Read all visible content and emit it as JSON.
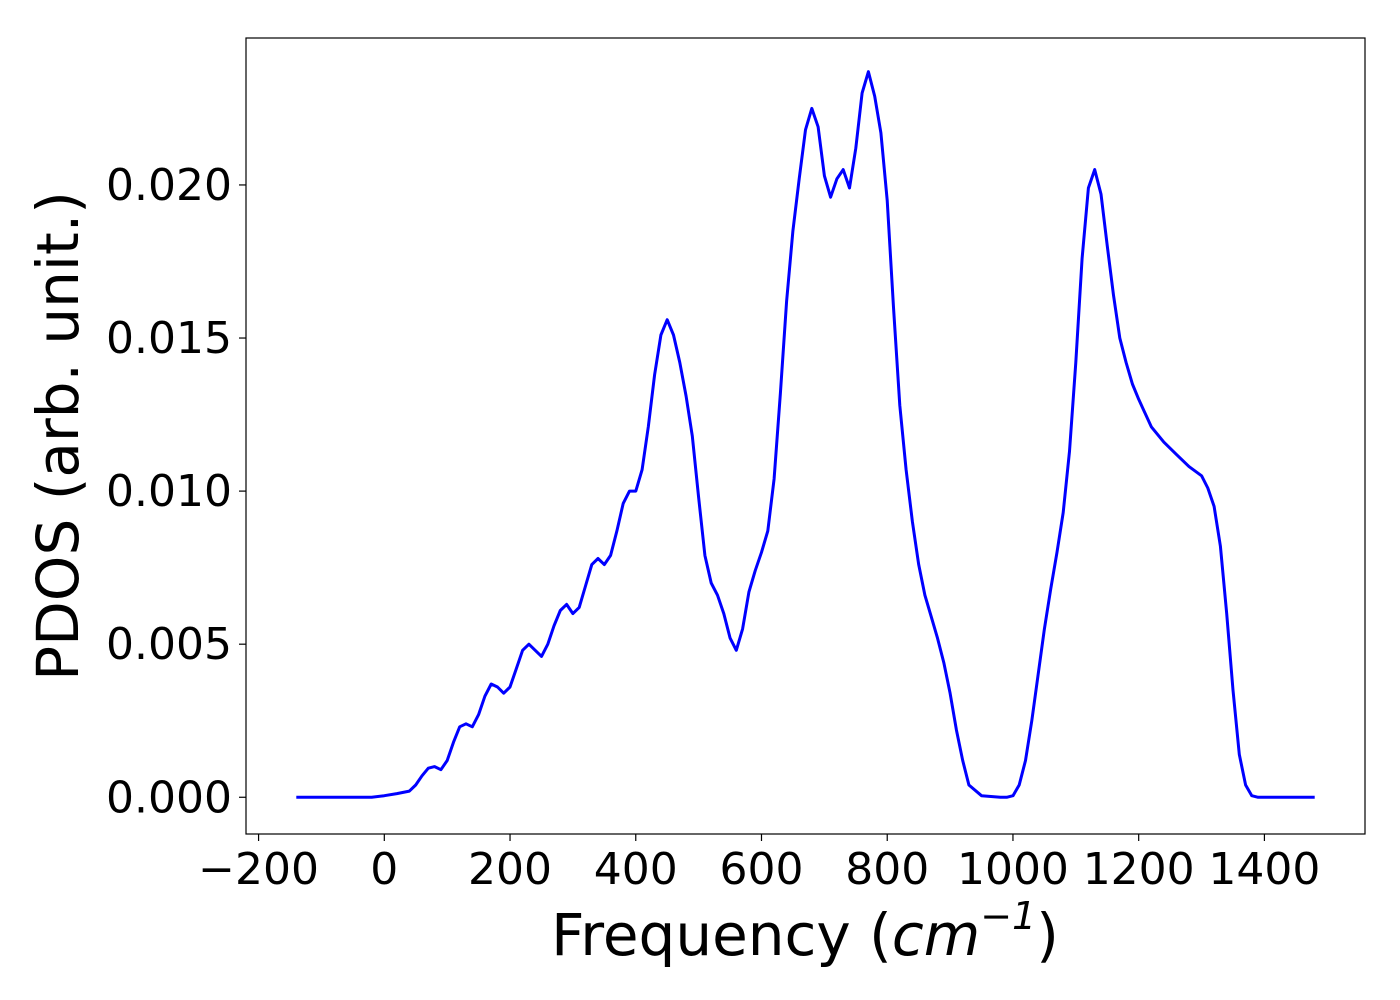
{
  "chart_data": {
    "type": "line",
    "title": "",
    "xlabel": "Frequency",
    "xlabel_unit": "cm",
    "xlabel_unit_exponent": "−1",
    "ylabel": "PDOS (arb. unit.)",
    "xlim": [
      -220,
      1560
    ],
    "ylim": [
      -0.0012,
      0.0248
    ],
    "xticks": [
      -200,
      0,
      200,
      400,
      600,
      800,
      1000,
      1200,
      1400
    ],
    "xtick_labels": [
      "−200",
      "0",
      "200",
      "400",
      "600",
      "800",
      "1000",
      "1200",
      "1400"
    ],
    "yticks": [
      0.0,
      0.005,
      0.01,
      0.015,
      0.02
    ],
    "ytick_labels": [
      "0.000",
      "0.005",
      "0.010",
      "0.015",
      "0.020"
    ],
    "grid": false,
    "legend": "none",
    "series": [
      {
        "color": "#0000ff",
        "x": [
          -140,
          -20,
          0,
          20,
          40,
          50,
          60,
          70,
          80,
          90,
          100,
          110,
          120,
          130,
          140,
          150,
          160,
          170,
          180,
          190,
          200,
          210,
          220,
          230,
          240,
          250,
          260,
          270,
          280,
          290,
          300,
          310,
          320,
          330,
          340,
          350,
          360,
          370,
          380,
          390,
          400,
          410,
          420,
          430,
          440,
          450,
          460,
          470,
          480,
          490,
          500,
          510,
          520,
          530,
          540,
          550,
          560,
          570,
          580,
          590,
          600,
          610,
          620,
          630,
          640,
          650,
          660,
          670,
          680,
          690,
          700,
          710,
          720,
          730,
          740,
          750,
          760,
          770,
          780,
          790,
          800,
          810,
          820,
          830,
          840,
          850,
          860,
          870,
          880,
          890,
          900,
          910,
          920,
          930,
          950,
          980,
          990,
          1000,
          1010,
          1020,
          1030,
          1040,
          1050,
          1060,
          1070,
          1080,
          1090,
          1100,
          1110,
          1120,
          1130,
          1140,
          1150,
          1160,
          1170,
          1180,
          1190,
          1200,
          1220,
          1240,
          1260,
          1280,
          1300,
          1310,
          1320,
          1330,
          1340,
          1350,
          1360,
          1370,
          1380,
          1390,
          1400,
          1480
        ],
        "y": [
          0.0,
          0.0,
          5e-05,
          0.00012,
          0.0002,
          0.0004,
          0.0007,
          0.00095,
          0.001,
          0.0009,
          0.0012,
          0.0018,
          0.0023,
          0.0024,
          0.0023,
          0.0027,
          0.0033,
          0.0037,
          0.0036,
          0.0034,
          0.0036,
          0.0042,
          0.0048,
          0.005,
          0.0048,
          0.0046,
          0.005,
          0.0056,
          0.0061,
          0.0063,
          0.006,
          0.0062,
          0.0069,
          0.0076,
          0.0078,
          0.0076,
          0.0079,
          0.0087,
          0.0096,
          0.01,
          0.01,
          0.0107,
          0.0121,
          0.0138,
          0.0151,
          0.0156,
          0.0151,
          0.0142,
          0.0131,
          0.0118,
          0.0098,
          0.0079,
          0.007,
          0.0066,
          0.006,
          0.0052,
          0.0048,
          0.0055,
          0.0067,
          0.0074,
          0.008,
          0.0087,
          0.0104,
          0.0132,
          0.0162,
          0.0185,
          0.0202,
          0.0218,
          0.0225,
          0.0219,
          0.0203,
          0.0196,
          0.0202,
          0.0205,
          0.0199,
          0.0212,
          0.023,
          0.0237,
          0.0229,
          0.0217,
          0.0195,
          0.016,
          0.0128,
          0.0107,
          0.009,
          0.0076,
          0.0066,
          0.0059,
          0.0052,
          0.0044,
          0.0034,
          0.0022,
          0.0012,
          0.0004,
          5e-05,
          0.0,
          0.0,
          5e-05,
          0.0004,
          0.0012,
          0.0025,
          0.004,
          0.0055,
          0.0068,
          0.008,
          0.0093,
          0.0113,
          0.0142,
          0.0176,
          0.0199,
          0.0205,
          0.0197,
          0.018,
          0.0164,
          0.015,
          0.0142,
          0.0135,
          0.013,
          0.0121,
          0.0116,
          0.0112,
          0.0108,
          0.0105,
          0.0101,
          0.0095,
          0.0082,
          0.006,
          0.0035,
          0.0014,
          0.0004,
          5e-05,
          0.0,
          0.0,
          0.0
        ]
      }
    ]
  }
}
